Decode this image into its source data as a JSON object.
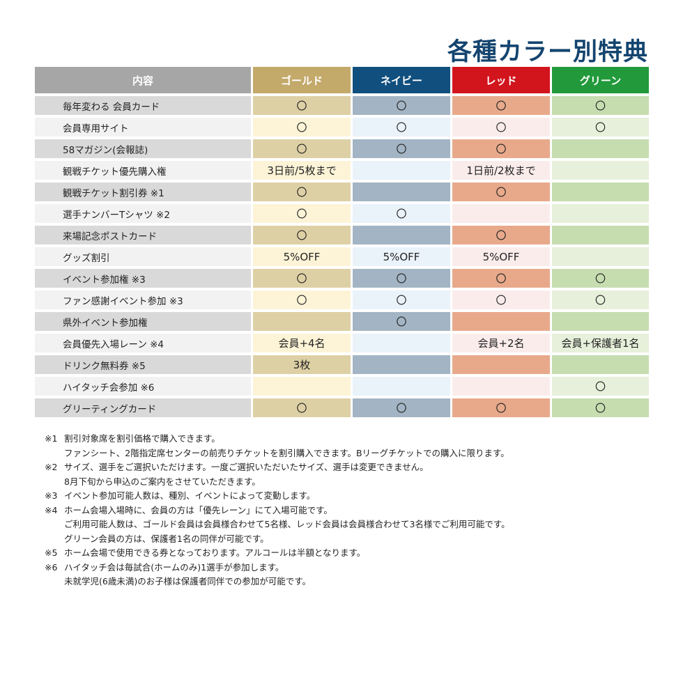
{
  "title": "各種カラー別特典",
  "table": {
    "headers": {
      "label": "内容",
      "gold": "ゴールド",
      "navy": "ネイビー",
      "red": "レッド",
      "green": "グリーン"
    },
    "rows": [
      {
        "label": "毎年変わる 会員カード",
        "gold": "〇",
        "navy": "〇",
        "red": "〇",
        "green": "〇"
      },
      {
        "label": "会員専用サイト",
        "gold": "〇",
        "navy": "〇",
        "red": "〇",
        "green": "〇"
      },
      {
        "label": "58マガジン(会報誌)",
        "gold": "〇",
        "navy": "〇",
        "red": "〇",
        "green": ""
      },
      {
        "label": "観戦チケット優先購入権",
        "gold": "3日前/5枚まで",
        "navy": "",
        "red": "1日前/2枚まで",
        "green": ""
      },
      {
        "label": "観戦チケット割引券 ※1",
        "gold": "〇",
        "navy": "",
        "red": "〇",
        "green": ""
      },
      {
        "label": "選手ナンバーTシャツ ※2",
        "gold": "〇",
        "navy": "〇",
        "red": "",
        "green": ""
      },
      {
        "label": "来場記念ポストカード",
        "gold": "〇",
        "navy": "",
        "red": "〇",
        "green": ""
      },
      {
        "label": "グッズ割引",
        "gold": "5%OFF",
        "navy": "5%OFF",
        "red": "5%OFF",
        "green": ""
      },
      {
        "label": "イベント参加権 ※3",
        "gold": "〇",
        "navy": "〇",
        "red": "〇",
        "green": "〇"
      },
      {
        "label": "ファン感謝イベント参加 ※3",
        "gold": "〇",
        "navy": "〇",
        "red": "〇",
        "green": "〇"
      },
      {
        "label": "県外イベント参加権",
        "gold": "",
        "navy": "〇",
        "red": "",
        "green": ""
      },
      {
        "label": "会員優先入場レーン ※4",
        "gold": "会員+4名",
        "navy": "",
        "red": "会員+2名",
        "green": "会員+保護者1名"
      },
      {
        "label": "ドリンク無料券 ※5",
        "gold": "3枚",
        "navy": "",
        "red": "",
        "green": ""
      },
      {
        "label": "ハイタッチ会参加 ※6",
        "gold": "",
        "navy": "",
        "red": "",
        "green": "〇"
      },
      {
        "label": "グリーティングカード",
        "gold": "〇",
        "navy": "〇",
        "red": "〇",
        "green": "〇"
      }
    ]
  },
  "notes": [
    {
      "mark": "※1",
      "lines": [
        "割引対象席を割引価格で購入できます。",
        "ファンシート、2階指定席センターの前売りチケットを割引購入できます。Bリーグチケットでの購入に限ります。"
      ]
    },
    {
      "mark": "※2",
      "lines": [
        "サイズ、選手をご選択いただけます。一度ご選択いただいたサイズ、選手は変更できません。",
        "8月下旬から申込のご案内をさせていただきます。"
      ]
    },
    {
      "mark": "※3",
      "lines": [
        "イベント参加可能人数は、種別、イベントによって変動します。"
      ]
    },
    {
      "mark": "※4",
      "lines": [
        "ホーム会場入場時に、会員の方は「優先レーン」にて入場可能です。",
        "ご利用可能人数は、ゴールド会員は会員様合わせて5名様、レッド会員は会員様合わせて3名様でご利用可能です。",
        "グリーン会員の方は、保護者1名の同伴が可能です。"
      ]
    },
    {
      "mark": "※5",
      "lines": [
        "ホーム会場で使用できる券となっております。アルコールは半額となります。"
      ]
    },
    {
      "mark": "※6",
      "lines": [
        "ハイタッチ会は毎試合(ホームのみ)1選手が参加します。",
        "未就学児(6歳未満)のお子様は保護者同伴での参加が可能です。"
      ]
    }
  ]
}
